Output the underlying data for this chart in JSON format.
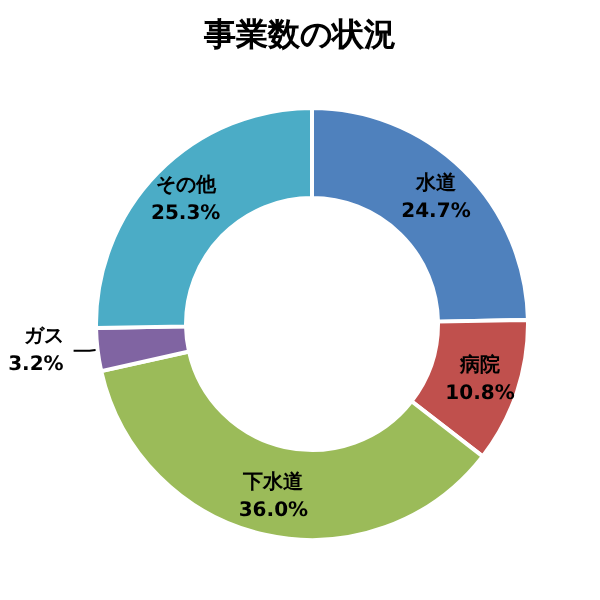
{
  "chart_data": {
    "type": "donut",
    "title": "事業数の状況",
    "categories": [
      "水道",
      "病院",
      "下水道",
      "ガス",
      "その他"
    ],
    "values": [
      24.7,
      10.8,
      36.0,
      3.2,
      25.3
    ],
    "value_labels": [
      "24.7%",
      "10.8%",
      "36.0%",
      "3.2%",
      "25.3%"
    ],
    "colors": [
      "#4f81bd",
      "#c0504d",
      "#9bbb59",
      "#8064a2",
      "#4bacc6"
    ],
    "legend": false
  }
}
